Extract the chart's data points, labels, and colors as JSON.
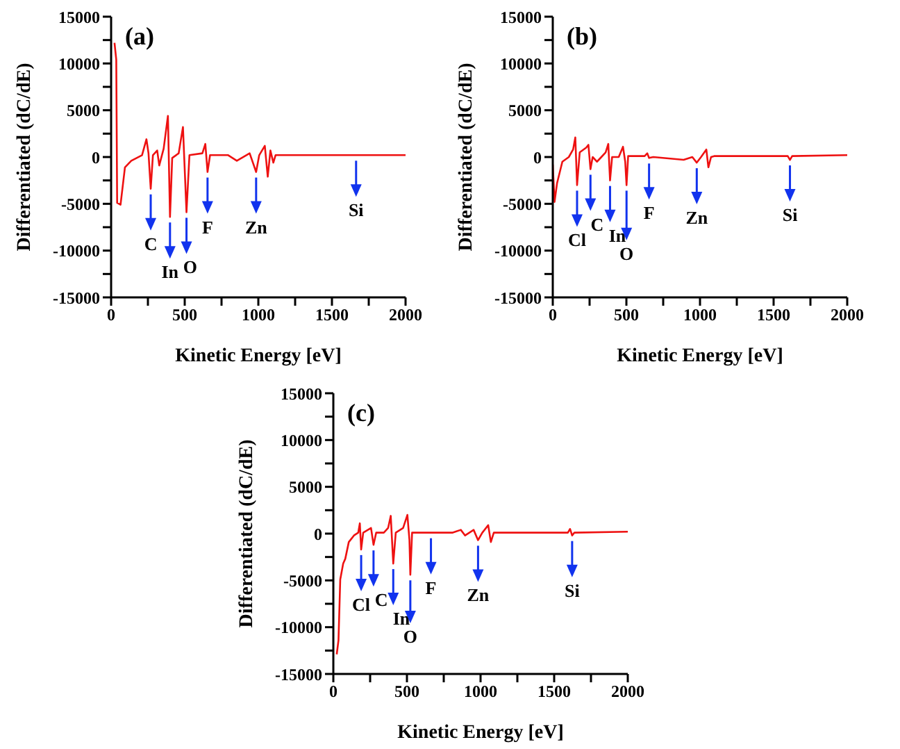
{
  "chart_data": [
    {
      "type": "line",
      "xlabel": "Kinetic Energy [eV]",
      "ylabel": "Differentiated (dC/dE)",
      "xlim": [
        0,
        2000
      ],
      "ylim": [
        -15000,
        15000
      ],
      "xticks": [
        0,
        {
          "value": 250,
          "label": null
        },
        500,
        {
          "value": 750,
          "label": null
        },
        1000,
        {
          "value": 1250,
          "label": null
        },
        1500,
        {
          "value": 1750,
          "label": null
        },
        2000
      ],
      "yticks": [
        -15000,
        {
          "value": -12500,
          "label": null
        },
        -10000,
        {
          "value": -7500,
          "label": null
        },
        -5000,
        {
          "value": -2500,
          "label": null
        },
        0,
        {
          "value": 2500,
          "label": null
        },
        5000,
        {
          "value": 7500,
          "label": null
        },
        10000,
        {
          "value": 12500,
          "label": null
        },
        15000
      ],
      "grid": false,
      "legend": false,
      "marker": "none",
      "line_style": "solid",
      "series": [
        {
          "color": "#ee1111",
          "x": [
            23,
            35,
            41,
            64,
            94,
            137,
            210,
            240,
            254,
            269,
            284,
            313,
            327,
            357,
            386,
            400,
            415,
            459,
            488,
            512,
            532,
            620,
            640,
            655,
            672,
            795,
            854,
            941,
            985,
            1006,
            1044,
            1064,
            1082,
            1102,
            1117,
            2000
          ],
          "values": [
            12200,
            10400,
            -4900,
            -5100,
            -1100,
            -400,
            200,
            1900,
            400,
            -3400,
            200,
            700,
            -900,
            900,
            4400,
            -6400,
            -100,
            400,
            3200,
            -5900,
            200,
            400,
            1400,
            -1600,
            200,
            200,
            -400,
            400,
            -1600,
            200,
            1200,
            -2100,
            700,
            -600,
            200,
            200
          ]
        }
      ],
      "annotations": [
        "(a)",
        {
          "text": "C",
          "x": 269,
          "y": -3400
        },
        {
          "text": "In",
          "x": 400,
          "y": -6400
        },
        {
          "text": "O",
          "x": 512,
          "y": -5900
        },
        {
          "text": "F",
          "x": 655,
          "y": -1600
        },
        {
          "text": "Zn",
          "x": 985,
          "y": -1600
        },
        {
          "text": "Si",
          "x": 1664,
          "y": 200
        }
      ]
    },
    {
      "type": "line",
      "xlabel": "Kinetic Energy [eV]",
      "ylabel": "Differentiated (dC/dE)",
      "xlim": [
        0,
        2000
      ],
      "ylim": [
        -15000,
        15000
      ],
      "xticks": [
        0,
        {
          "value": 250,
          "label": null
        },
        500,
        {
          "value": 750,
          "label": null
        },
        1000,
        {
          "value": 1250,
          "label": null
        },
        1500,
        {
          "value": 1750,
          "label": null
        },
        2000
      ],
      "yticks": [
        -15000,
        {
          "value": -12500,
          "label": null
        },
        -10000,
        {
          "value": -7500,
          "label": null
        },
        -5000,
        {
          "value": -2500,
          "label": null
        },
        0,
        {
          "value": 2500,
          "label": null
        },
        5000,
        {
          "value": 7500,
          "label": null
        },
        10000,
        {
          "value": 12500,
          "label": null
        },
        15000
      ],
      "grid": false,
      "legend": false,
      "marker": "none",
      "line_style": "solid",
      "series": [
        {
          "color": "#ee1111",
          "x": [
            0,
            12,
            29,
            65,
            109,
            138,
            153,
            165,
            183,
            227,
            242,
            256,
            271,
            300,
            330,
            359,
            377,
            389,
            403,
            448,
            477,
            492,
            501,
            512,
            624,
            642,
            654,
            683,
            889,
            948,
            978,
            1007,
            1043,
            1057,
            1075,
            1096,
            1596,
            1611,
            1626,
            2000
          ],
          "values": [
            -800,
            -4800,
            -2800,
            -500,
            0,
            800,
            2100,
            -3000,
            500,
            1000,
            1300,
            -1300,
            0,
            -500,
            0,
            500,
            1400,
            -2500,
            0,
            0,
            1100,
            -500,
            -3000,
            100,
            100,
            400,
            -100,
            0,
            -300,
            0,
            -600,
            0,
            800,
            -1100,
            0,
            100,
            100,
            -300,
            100,
            200
          ]
        }
      ],
      "annotations": [
        "(b)",
        {
          "text": "Cl",
          "x": 165,
          "y": -3000
        },
        {
          "text": "C",
          "x": 256,
          "y": -1300
        },
        {
          "text": "In",
          "x": 389,
          "y": -2500
        },
        {
          "text": "O",
          "x": 501,
          "y": -3000
        },
        {
          "text": "F",
          "x": 654,
          "y": -100
        },
        {
          "text": "Zn",
          "x": 978,
          "y": -600
        },
        {
          "text": "Si",
          "x": 1611,
          "y": -300
        }
      ]
    },
    {
      "type": "line",
      "xlabel": "Kinetic Energy [eV]",
      "ylabel": "Differentiated (dC/dE)",
      "xlim": [
        0,
        2000
      ],
      "ylim": [
        -15000,
        15000
      ],
      "xticks": [
        0,
        {
          "value": 250,
          "label": null
        },
        500,
        {
          "value": 750,
          "label": null
        },
        1000,
        {
          "value": 1250,
          "label": null
        },
        1500,
        {
          "value": 1750,
          "label": null
        },
        2000
      ],
      "yticks": [
        -15000,
        {
          "value": -12500,
          "label": null
        },
        -10000,
        {
          "value": -7500,
          "label": null
        },
        -5000,
        {
          "value": -2500,
          "label": null
        },
        0,
        {
          "value": 2500,
          "label": null
        },
        5000,
        {
          "value": 7500,
          "label": null
        },
        10000,
        {
          "value": 12500,
          "label": null
        },
        15000
      ],
      "grid": false,
      "legend": false,
      "marker": "none",
      "line_style": "solid",
      "series": [
        {
          "color": "#ee1111",
          "x": [
            23,
            35,
            47,
            67,
            81,
            105,
            140,
            169,
            180,
            189,
            203,
            256,
            273,
            291,
            343,
            372,
            390,
            407,
            424,
            474,
            503,
            517,
            523,
            535,
            808,
            866,
            895,
            953,
            983,
            1012,
            1052,
            1070,
            1090,
            1593,
            1608,
            1622,
            1637,
            2000
          ],
          "values": [
            -12900,
            -11400,
            -4900,
            -3200,
            -2700,
            -900,
            -200,
            100,
            1100,
            -1700,
            100,
            600,
            -1200,
            100,
            100,
            600,
            1900,
            -3200,
            100,
            600,
            2000,
            -700,
            -4400,
            100,
            100,
            400,
            -200,
            400,
            -700,
            100,
            900,
            -900,
            100,
            100,
            500,
            -200,
            100,
            200
          ]
        }
      ],
      "annotations": [
        "(c)",
        {
          "text": "Cl",
          "x": 189,
          "y": -1700
        },
        {
          "text": "C",
          "x": 273,
          "y": -1200
        },
        {
          "text": "In",
          "x": 407,
          "y": -3200
        },
        {
          "text": "O",
          "x": 523,
          "y": -4400
        },
        {
          "text": "F",
          "x": 663,
          "y": 100
        },
        {
          "text": "Zn",
          "x": 983,
          "y": -700
        },
        {
          "text": "Si",
          "x": 1622,
          "y": -200
        }
      ]
    }
  ]
}
